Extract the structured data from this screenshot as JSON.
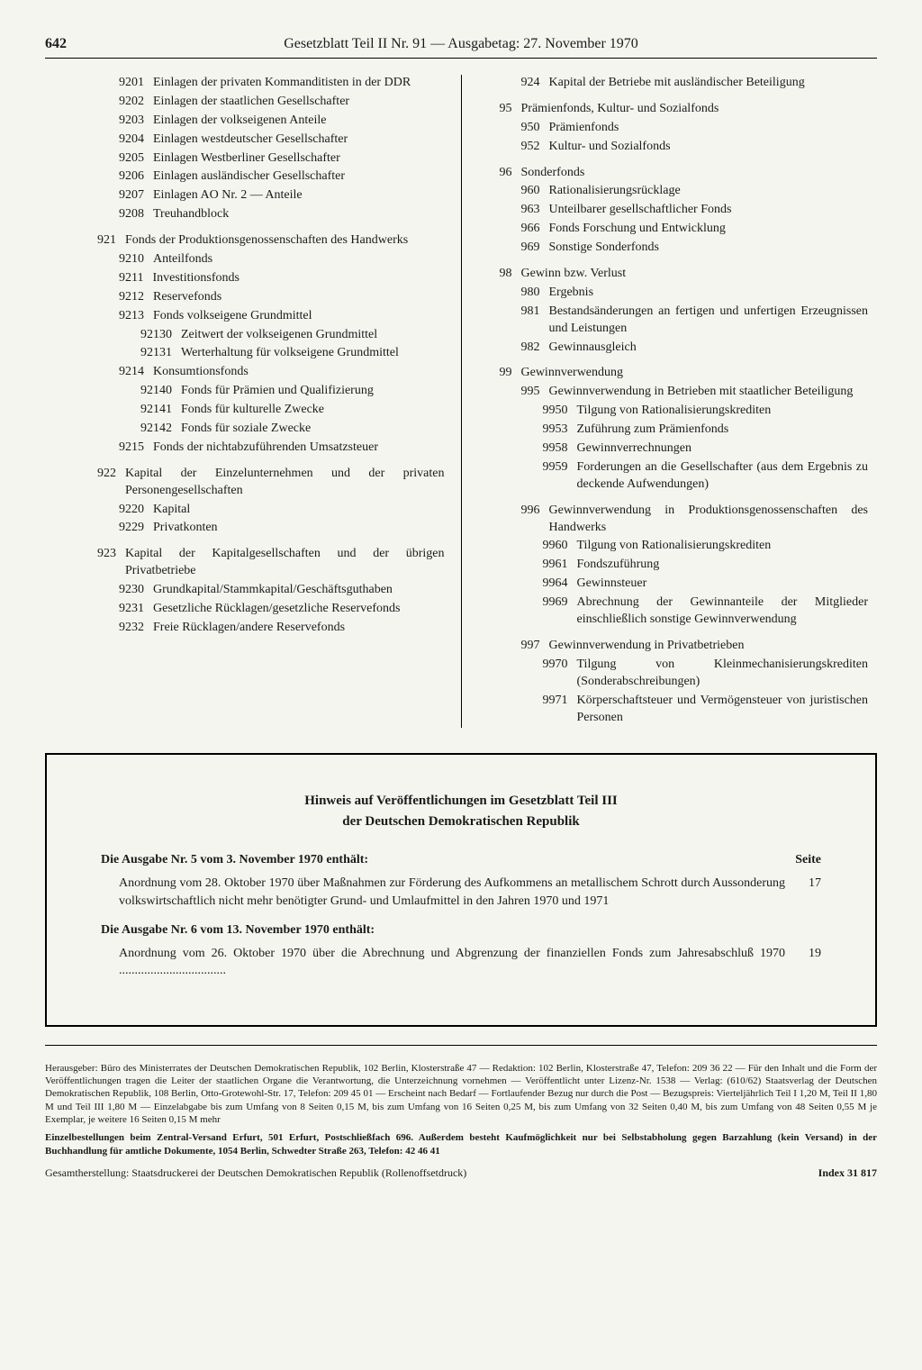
{
  "page_number": "642",
  "header_title": "Gesetzblatt Teil II Nr. 91  —  Ausgabetag: 27. November 1970",
  "left_column": [
    {
      "ind": 2,
      "code": "9201",
      "text": "Einlagen der privaten Kommanditisten in der DDR"
    },
    {
      "ind": 2,
      "code": "9202",
      "text": "Einlagen der staatlichen Gesellschafter"
    },
    {
      "ind": 2,
      "code": "9203",
      "text": "Einlagen der volkseigenen Anteile"
    },
    {
      "ind": 2,
      "code": "9204",
      "text": "Einlagen westdeutscher Gesellschafter"
    },
    {
      "ind": 2,
      "code": "9205",
      "text": "Einlagen Westberliner Gesellschafter"
    },
    {
      "ind": 2,
      "code": "9206",
      "text": "Einlagen ausländischer Gesellschafter"
    },
    {
      "ind": 2,
      "code": "9207",
      "text": "Einlagen AO Nr. 2 — Anteile"
    },
    {
      "ind": 2,
      "code": "9208",
      "text": "Treuhandblock"
    },
    {
      "ind": 1,
      "code": "921",
      "text": "Fonds der Produktionsgenossenschaften des Handwerks",
      "gap": true
    },
    {
      "ind": 2,
      "code": "9210",
      "text": "Anteilfonds"
    },
    {
      "ind": 2,
      "code": "9211",
      "text": "Investitionsfonds"
    },
    {
      "ind": 2,
      "code": "9212",
      "text": "Reservefonds"
    },
    {
      "ind": 2,
      "code": "9213",
      "text": "Fonds volkseigene Grundmittel"
    },
    {
      "ind": 3,
      "code": "92130",
      "text": "Zeitwert der volkseigenen Grundmittel"
    },
    {
      "ind": 3,
      "code": "92131",
      "text": "Werterhaltung für volkseigene Grundmittel"
    },
    {
      "ind": 2,
      "code": "9214",
      "text": "Konsumtionsfonds"
    },
    {
      "ind": 3,
      "code": "92140",
      "text": "Fonds für Prämien und Qualifizierung"
    },
    {
      "ind": 3,
      "code": "92141",
      "text": "Fonds für kulturelle Zwecke"
    },
    {
      "ind": 3,
      "code": "92142",
      "text": "Fonds für soziale Zwecke"
    },
    {
      "ind": 2,
      "code": "9215",
      "text": "Fonds der nichtabzuführenden Umsatzsteuer"
    },
    {
      "ind": 1,
      "code": "922",
      "text": "Kapital der Einzelunternehmen und der privaten Personengesellschaften",
      "gap": true
    },
    {
      "ind": 2,
      "code": "9220",
      "text": "Kapital"
    },
    {
      "ind": 2,
      "code": "9229",
      "text": "Privatkonten"
    },
    {
      "ind": 1,
      "code": "923",
      "text": "Kapital der Kapitalgesellschaften und der übrigen Privatbetriebe",
      "gap": true
    },
    {
      "ind": 2,
      "code": "9230",
      "text": "Grundkapital/Stammkapital/Geschäftsguthaben"
    },
    {
      "ind": 2,
      "code": "9231",
      "text": "Gesetzliche Rücklagen/gesetzliche Reservefonds"
    },
    {
      "ind": 2,
      "code": "9232",
      "text": "Freie Rücklagen/andere Reservefonds"
    }
  ],
  "right_column": [
    {
      "ind": 1,
      "code": "924",
      "text": "Kapital der Betriebe mit ausländischer Beteiligung"
    },
    {
      "ind": 0,
      "code": "95",
      "text": "Prämienfonds, Kultur- und Sozialfonds",
      "gap": true
    },
    {
      "ind": 1,
      "code": "950",
      "text": "Prämienfonds"
    },
    {
      "ind": 1,
      "code": "952",
      "text": "Kultur- und Sozialfonds"
    },
    {
      "ind": 0,
      "code": "96",
      "text": "Sonderfonds",
      "gap": true
    },
    {
      "ind": 1,
      "code": "960",
      "text": "Rationalisierungsrücklage"
    },
    {
      "ind": 1,
      "code": "963",
      "text": "Unteilbarer gesellschaftlicher Fonds"
    },
    {
      "ind": 1,
      "code": "966",
      "text": "Fonds Forschung und Entwicklung"
    },
    {
      "ind": 1,
      "code": "969",
      "text": "Sonstige Sonderfonds"
    },
    {
      "ind": 0,
      "code": "98",
      "text": "Gewinn bzw. Verlust",
      "gap": true
    },
    {
      "ind": 1,
      "code": "980",
      "text": "Ergebnis"
    },
    {
      "ind": 1,
      "code": "981",
      "text": "Bestandsänderungen an fertigen und unfertigen Erzeugnissen und Leistungen"
    },
    {
      "ind": 1,
      "code": "982",
      "text": "Gewinnausgleich"
    },
    {
      "ind": 0,
      "code": "99",
      "text": "Gewinnverwendung",
      "gap": true
    },
    {
      "ind": 1,
      "code": "995",
      "text": "Gewinnverwendung in Betrieben mit staatlicher Beteiligung"
    },
    {
      "ind": 2,
      "code": "9950",
      "text": "Tilgung von Rationalisierungskrediten"
    },
    {
      "ind": 2,
      "code": "9953",
      "text": "Zuführung zum Prämienfonds"
    },
    {
      "ind": 2,
      "code": "9958",
      "text": "Gewinnverrechnungen"
    },
    {
      "ind": 2,
      "code": "9959",
      "text": "Forderungen an die Gesellschafter (aus dem Ergebnis zu deckende Aufwendungen)"
    },
    {
      "ind": 1,
      "code": "996",
      "text": "Gewinnverwendung in Produktionsgenossenschaften des Handwerks",
      "gap": true
    },
    {
      "ind": 2,
      "code": "9960",
      "text": "Tilgung von Rationalisierungskrediten"
    },
    {
      "ind": 2,
      "code": "9961",
      "text": "Fondszuführung"
    },
    {
      "ind": 2,
      "code": "9964",
      "text": "Gewinnsteuer"
    },
    {
      "ind": 2,
      "code": "9969",
      "text": "Abrechnung der Gewinnanteile der Mitglieder einschließlich sonstige Gewinnverwendung"
    },
    {
      "ind": 1,
      "code": "997",
      "text": "Gewinnverwendung in Privatbetrieben",
      "gap": true
    },
    {
      "ind": 2,
      "code": "9970",
      "text": "Tilgung von Kleinmechanisierungskrediten (Sonderabschreibungen)"
    },
    {
      "ind": 2,
      "code": "9971",
      "text": "Körperschaftsteuer und Vermögensteuer von juristischen Personen"
    }
  ],
  "notice": {
    "title_line1": "Hinweis auf Veröffentlichungen im Gesetzblatt Teil III",
    "title_line2": "der Deutschen Demokratischen Republik",
    "seite_label": "Seite",
    "issues": [
      {
        "heading": "Die Ausgabe Nr. 5 vom 3. November 1970 enthält:",
        "text": "Anordnung vom 28. Oktober 1970 über Maßnahmen zur Förderung des Aufkommens an metallischem Schrott durch Aussonderung volkswirtschaftlich nicht mehr benötigter Grund- und Umlaufmittel in den Jahren 1970 und 1971",
        "page": "17"
      },
      {
        "heading": "Die Ausgabe Nr. 6 vom 13. November 1970 enthält:",
        "text": "Anordnung vom 26. Oktober 1970 über die Abrechnung und Abgrenzung der finanziellen Fonds zum Jahresabschluß 1970 ..................................",
        "page": "19"
      }
    ]
  },
  "imprint": {
    "p1": "Herausgeber: Büro des Ministerrates der Deutschen Demokratischen Republik, 102 Berlin, Klosterstraße 47 — Redaktion: 102 Berlin, Klosterstraße 47, Telefon: 209 36 22 — Für den Inhalt und die Form der Veröffentlichungen tragen die Leiter der staatlichen Organe die Verantwortung, die Unterzeichnung vornehmen — Veröffentlicht unter Lizenz-Nr. 1538 — Verlag: (610/62) Staatsverlag der Deutschen Demokratischen Republik, 108 Berlin, Otto-Grotewohl-Str. 17, Telefon: 209 45 01 — Erscheint nach Bedarf — Fortlaufender Bezug nur durch die Post — Bezugspreis: Vierteljährlich Teil I 1,20 M, Teil II 1,80 M und Teil III 1,80 M — Einzelabgabe bis zum Umfang von 8 Seiten 0,15 M, bis zum Umfang von 16 Seiten 0,25 M, bis zum Umfang von 32 Seiten 0,40 M, bis zum Umfang von 48 Seiten 0,55 M je Exemplar, je weitere 16 Seiten 0,15 M mehr",
    "p2": "Einzelbestellungen beim Zentral-Versand Erfurt, 501 Erfurt, Postschließfach 696. Außerdem besteht Kaufmöglichkeit nur bei Selbstabholung gegen Barzahlung (kein Versand) in der Buchhandlung für amtliche Dokumente, 1054 Berlin, Schwedter Straße 263, Telefon: 42 46 41",
    "p3": "Gesamtherstellung: Staatsdruckerei der Deutschen Demokratischen Republik (Rollenoffsetdruck)",
    "index": "Index 31 817"
  }
}
